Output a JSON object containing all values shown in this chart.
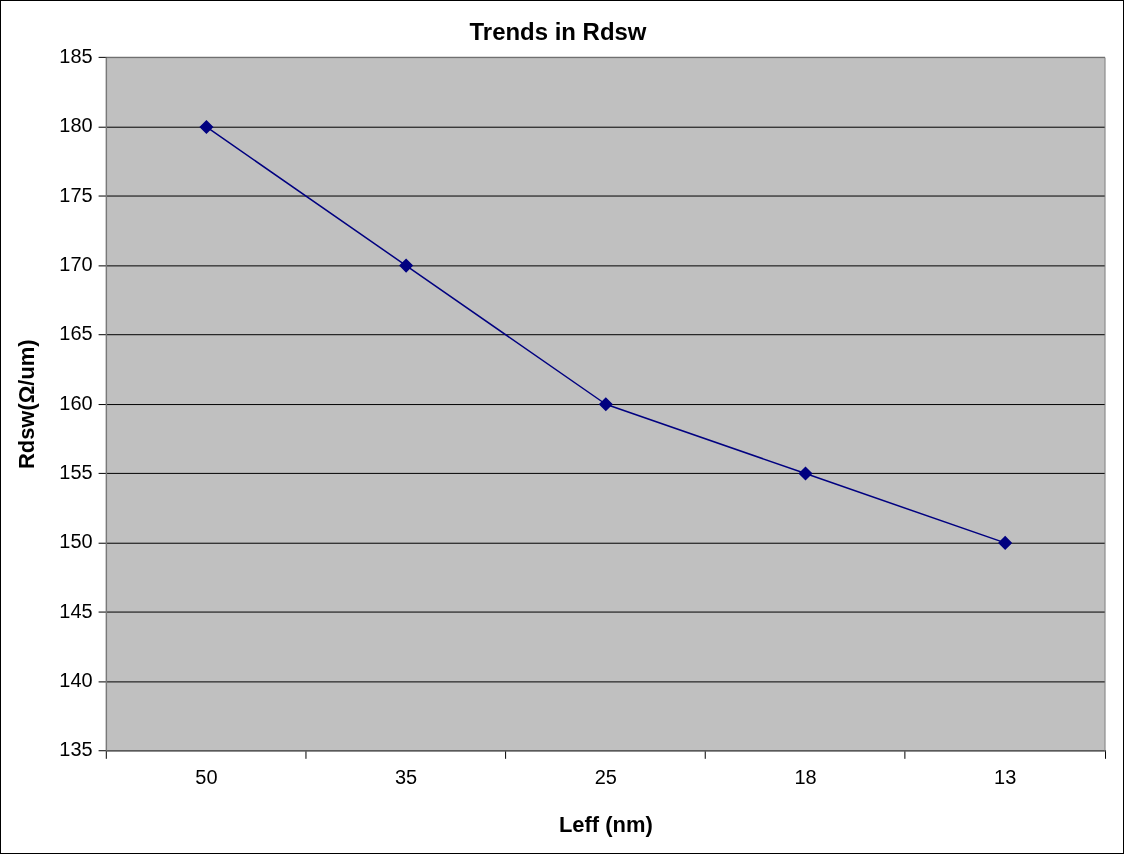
{
  "chart_data": {
    "type": "line",
    "title": "Trends in Rdsw",
    "xlabel": "Leff (nm)",
    "ylabel": "Rdsw(Ω/um)",
    "categories": [
      "50",
      "35",
      "25",
      "18",
      "13"
    ],
    "series": [
      {
        "color": "#000080",
        "values": [
          180,
          170,
          160,
          155,
          150
        ]
      }
    ],
    "ylim": [
      135,
      185
    ],
    "yticks": [
      135,
      140,
      145,
      150,
      155,
      160,
      165,
      170,
      175,
      180,
      185
    ],
    "grid": "y",
    "legend": false,
    "marker": "diamond",
    "line_style": "solid"
  }
}
